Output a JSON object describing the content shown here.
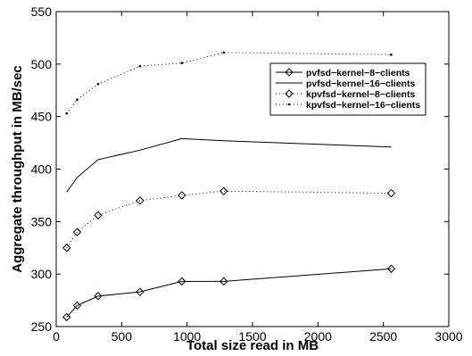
{
  "chart_data": {
    "type": "line",
    "xlabel": "Total size read in MB",
    "ylabel": "Aggregate throughput in MB/sec",
    "xlim": [
      0,
      3000
    ],
    "ylim": [
      250,
      550
    ],
    "xticks": [
      0,
      500,
      1000,
      1500,
      2000,
      2500,
      3000
    ],
    "yticks": [
      250,
      300,
      350,
      400,
      450,
      500,
      550
    ],
    "grid": false,
    "legend_position": "top-right",
    "x": [
      80,
      160,
      320,
      640,
      960,
      1280,
      2560
    ],
    "series": [
      {
        "name": "pvfsd−kernel−8−clients",
        "style": "solid",
        "marker": "diamond",
        "values": [
          259,
          270,
          279,
          283,
          293,
          293,
          305
        ]
      },
      {
        "name": "pvfsd−kernel−16−clients",
        "style": "solid",
        "marker": "none",
        "values": [
          378,
          392,
          409,
          418,
          429,
          427,
          421
        ]
      },
      {
        "name": "kpvfsd−kernel−8−clients",
        "style": "dotted",
        "marker": "diamond",
        "values": [
          325,
          340,
          356,
          370,
          375,
          379,
          377
        ]
      },
      {
        "name": "kpvfsd−kernel−16−clients",
        "style": "dotted",
        "marker": "point",
        "values": [
          453,
          466,
          481,
          498,
          501,
          511,
          509
        ]
      }
    ]
  }
}
